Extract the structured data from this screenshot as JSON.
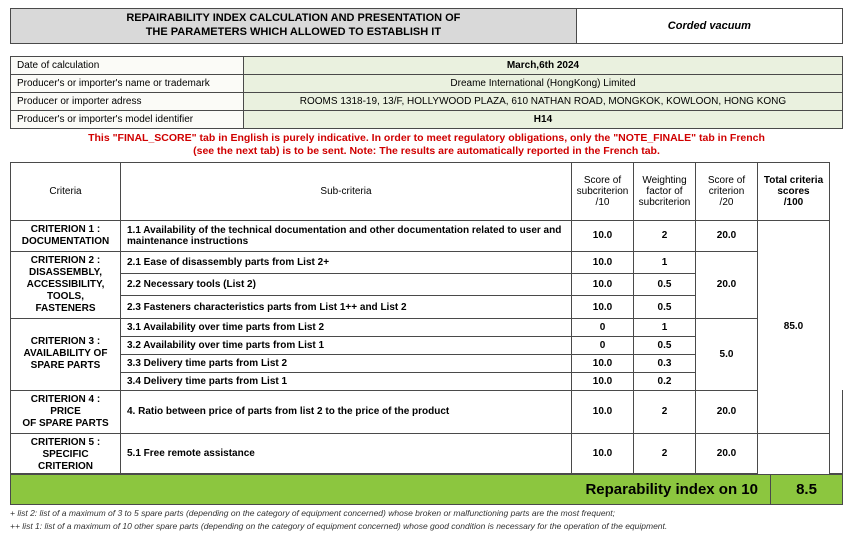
{
  "header": {
    "title_l1": "REPAIRABILITY INDEX CALCULATION AND PRESENTATION OF",
    "title_l2": "THE PARAMETERS WHICH ALLOWED TO ESTABLISH IT",
    "product": "Corded vacuum"
  },
  "info": {
    "date_lbl": "Date of calculation",
    "date_val": "March,6th 2024",
    "name_lbl": "Producer's or importer's name or trademark",
    "name_val": "Dreame International (HongKong) Limited",
    "addr_lbl": "Producer or importer adress",
    "addr_val": "ROOMS 1318-19, 13/F, HOLLYWOOD PLAZA, 610 NATHAN ROAD, MONGKOK, KOWLOON, HONG KONG",
    "model_lbl": "Producer's or importer's model identifier",
    "model_val": "H14"
  },
  "note_l1": "This \"FINAL_SCORE\" tab in English is purely indicative. In order to meet regulatory obligations, only the \"NOTE_FINALE\" tab in French",
  "note_l2": "(see the next tab) is to be sent. Note: The results are automatically reported in the French tab.",
  "cols": {
    "criteria": "Criteria",
    "sub": "Sub-criteria",
    "s10_l1": "Score of",
    "s10_l2": "subcriterion",
    "s10_l3": "/10",
    "wf_l1": "Weighting",
    "wf_l2": "factor of",
    "wf_l3": "subcriterion",
    "s20_l1": "Score of",
    "s20_l2": "criterion",
    "s20_l3": "/20",
    "tot_l1": "Total criteria",
    "tot_l2": "scores",
    "tot_l3": "/100"
  },
  "c1": {
    "name_l1": "CRITERION 1 :",
    "name_l2": "DOCUMENTATION",
    "s1": "1.1 Availability of the technical documentation and other documentation related to user and maintenance instructions",
    "s1_10": "10.0",
    "s1_wf": "2",
    "score20": "20.0"
  },
  "c2": {
    "name_l1": "CRITERION 2 :",
    "name_l2": "DISASSEMBLY,",
    "name_l3": "ACCESSIBILITY,",
    "name_l4": "TOOLS, FASTENERS",
    "s1": "2.1 Ease of disassembly parts from List 2+",
    "s1_10": "10.0",
    "s1_wf": "1",
    "s2": "2.2 Necessary tools (List 2)",
    "s2_10": "10.0",
    "s2_wf": "0.5",
    "s3": "2.3 Fasteners characteristics parts from List 1++ and List 2",
    "s3_10": "10.0",
    "s3_wf": "0.5",
    "score20": "20.0"
  },
  "c3": {
    "name_l1": "CRITERION 3 :",
    "name_l2": "AVAILABILITY OF",
    "name_l3": "SPARE PARTS",
    "s1": "3.1 Availability over time parts from List 2",
    "s1_10": "0",
    "s1_wf": "1",
    "s2": "3.2 Availability over time parts from List 1",
    "s2_10": "0",
    "s2_wf": "0.5",
    "s3": "3.3 Delivery time parts from List 2",
    "s3_10": "10.0",
    "s3_wf": "0.3",
    "s4": "3.4 Delivery time parts from List 1",
    "s4_10": "10.0",
    "s4_wf": "0.2",
    "score20": "5.0"
  },
  "c4": {
    "name_l1": "CRITERION 4 : PRICE",
    "name_l2": "OF SPARE PARTS",
    "s1": "4. Ratio between price of parts from list 2 to the price of the product",
    "s1_10": "10.0",
    "s1_wf": "2",
    "score20": "20.0"
  },
  "c5": {
    "name_l1": "CRITERION 5 :",
    "name_l2": "SPECIFIC CRITERION",
    "s1": "5.1 Free remote assistance",
    "s1_10": "10.0",
    "s1_wf": "2",
    "score20": "20.0"
  },
  "total100": "85.0",
  "repar": {
    "label": "Reparability index on 10",
    "value": "8.5"
  },
  "foot1": "+ list 2: list of a maximum of 3 to 5 spare parts (depending on the category of equipment concerned) whose broken or malfunctioning parts are the most frequent;",
  "foot2": "++ list 1: list of a maximum of 10 other spare parts (depending on the category of equipment concerned) whose good condition is necessary for the operation of the equipment."
}
